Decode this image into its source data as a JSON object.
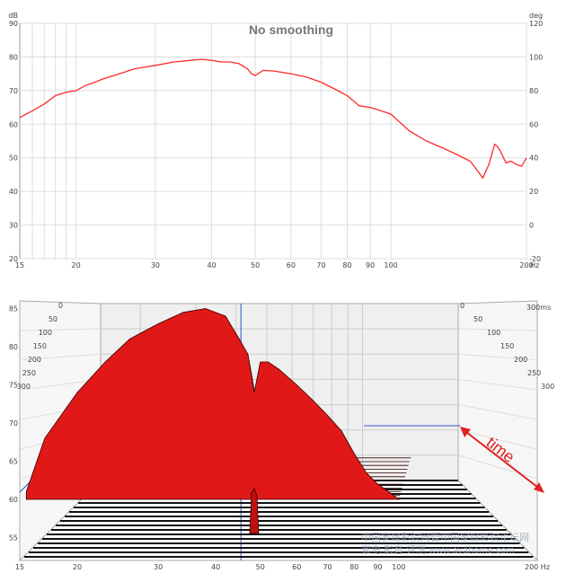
{
  "chart_data": [
    {
      "type": "line",
      "title": "No smoothing",
      "xlabel_unit": "Hz",
      "ylabel_left_unit": "dB",
      "ylabel_right_unit": "deg",
      "xscale": "log",
      "xlim": [
        15,
        200
      ],
      "ylim": [
        20,
        90
      ],
      "ylim_right": [
        -20,
        120
      ],
      "x_ticks": [
        "15",
        "20",
        "30",
        "40",
        "50",
        "60",
        "70",
        "80",
        "90",
        "100",
        "200"
      ],
      "y_ticks_left": [
        "20",
        "30",
        "40",
        "50",
        "60",
        "70",
        "80",
        "90"
      ],
      "y_ticks_right": [
        "-20",
        "0",
        "20",
        "40",
        "60",
        "80",
        "100",
        "120"
      ],
      "grid": true,
      "series": [
        {
          "color": "#ff2a2a",
          "x": [
            15,
            16,
            17,
            18,
            19,
            20,
            21,
            22,
            23,
            25,
            27,
            30,
            33,
            36,
            38,
            40,
            42,
            44,
            46,
            48,
            49,
            50,
            52,
            55,
            60,
            65,
            70,
            75,
            80,
            85,
            90,
            95,
            100,
            110,
            120,
            130,
            140,
            150,
            155,
            160,
            165,
            170,
            172,
            175,
            180,
            185,
            190,
            195,
            200
          ],
          "y": [
            62,
            64,
            66,
            68.5,
            69.5,
            70,
            71.5,
            72.5,
            73.5,
            75,
            76.5,
            77.5,
            78.5,
            79,
            79.3,
            79,
            78.5,
            78.5,
            78,
            76.5,
            75,
            74.5,
            76,
            75.8,
            75,
            74,
            72.5,
            70.5,
            68.5,
            65.5,
            65,
            64,
            63,
            58,
            55,
            53,
            51,
            49,
            46.5,
            44,
            48,
            54,
            53.5,
            52,
            48.5,
            49,
            48,
            47.5,
            50
          ]
        }
      ]
    },
    {
      "type": "area",
      "subtype": "waterfall",
      "annotation": "time",
      "xscale": "log",
      "xlim": [
        15,
        200
      ],
      "zlim": [
        52,
        86
      ],
      "x_ticks": [
        "15",
        "20",
        "30",
        "40",
        "50",
        "60",
        "70",
        "80",
        "90",
        "100",
        "200 Hz"
      ],
      "z_ticks": [
        "55",
        "60",
        "65",
        "70",
        "75",
        "80",
        "85"
      ],
      "time_ticks": [
        "0",
        "50",
        "100",
        "150",
        "200",
        "250",
        "300"
      ],
      "time_label_back": "300ms",
      "slice_count": 12,
      "slice_decay_db": [
        0,
        1.2,
        2.4,
        3.6,
        4.8,
        6.0,
        7.2,
        8.4,
        9.6,
        10.8,
        12.0,
        13.2
      ],
      "front_x": [
        15.5,
        17,
        20,
        23,
        26,
        30,
        34,
        38,
        42,
        45,
        47,
        48.5,
        50,
        52,
        55,
        60,
        65,
        70,
        75,
        80,
        85,
        90,
        95,
        100
      ],
      "front_z": [
        61,
        68,
        74,
        78,
        81,
        83,
        84.5,
        85,
        84,
        81,
        79,
        74,
        78,
        78,
        77,
        75,
        73,
        71,
        69,
        66,
        63.5,
        62,
        61,
        60
      ]
    }
  ],
  "watermark": {
    "line1": "中国家庭影院网暨中国家庭影院论坛网",
    "line2": "家电 影音 评测 www.avahome.com"
  }
}
